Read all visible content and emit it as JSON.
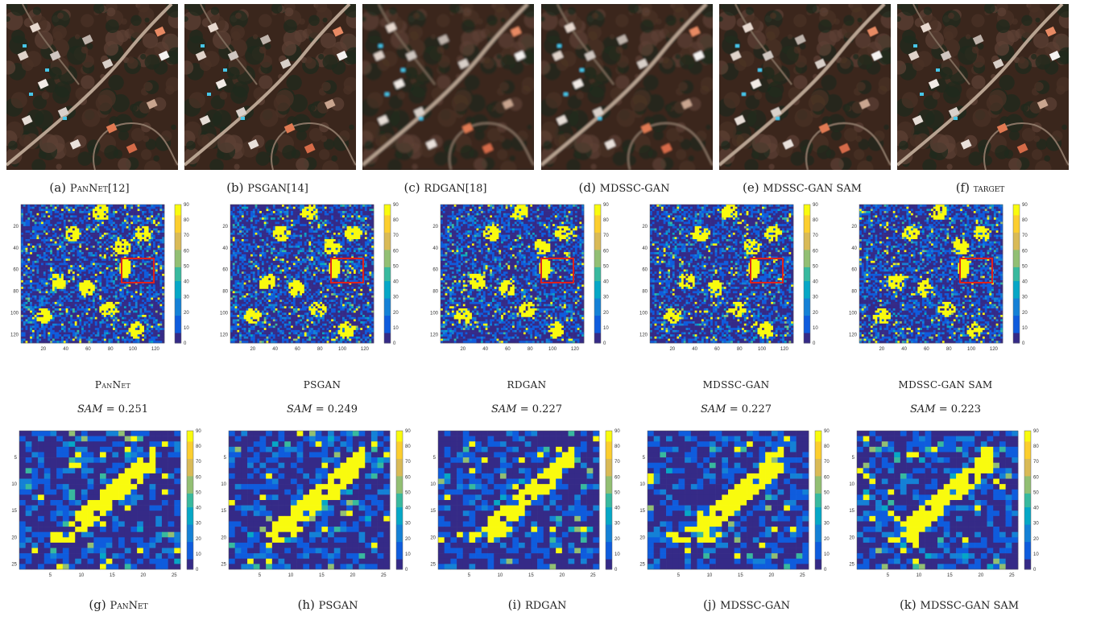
{
  "top_row": {
    "captions": [
      {
        "letter": "(a)",
        "name": "PanNet[12]"
      },
      {
        "letter": "(b)",
        "name": "PSGAN[14]"
      },
      {
        "letter": "(c)",
        "name": "RDGAN[18]"
      },
      {
        "letter": "(d)",
        "name": "MDSSC-GAN"
      },
      {
        "letter": "(e)",
        "name": "MDSSC-GAN SAM"
      },
      {
        "letter": "(f)",
        "name": "target"
      }
    ]
  },
  "sam_maps": {
    "methods": [
      "PanNet",
      "PSGAN",
      "RDGAN",
      "MDSSC-GAN",
      "MDSSC-GAN SAM"
    ],
    "sam_label": "SAM",
    "sam_values": [
      "0.251",
      "0.249",
      "0.227",
      "0.227",
      "0.223"
    ],
    "full_axis_y_ticks": [
      "20",
      "40",
      "60",
      "80",
      "100",
      "120"
    ],
    "full_axis_x_ticks": [
      "20",
      "40",
      "60",
      "80",
      "100",
      "120"
    ],
    "zoom_axis_y_ticks": [
      "5",
      "10",
      "15",
      "20",
      "25"
    ],
    "zoom_axis_x_ticks": [
      "5",
      "10",
      "15",
      "20",
      "25"
    ],
    "colorbar_ticks": [
      "0",
      "10",
      "20",
      "30",
      "40",
      "50",
      "60",
      "70",
      "80",
      "90"
    ],
    "colormap": [
      "#352a87",
      "#0f5cdd",
      "#1481d6",
      "#06a7c6",
      "#38b99e",
      "#92bf73",
      "#d9ba56",
      "#fcce2e",
      "#f9fb0e"
    ]
  },
  "bottom_row": {
    "captions": [
      {
        "letter": "(g)",
        "name": "PanNet"
      },
      {
        "letter": "(h)",
        "name": "PSGAN"
      },
      {
        "letter": "(i)",
        "name": "RDGAN"
      },
      {
        "letter": "(j)",
        "name": "MDSSC-GAN"
      },
      {
        "letter": "(k)",
        "name": "MDSSC-GAN SAM"
      }
    ]
  }
}
